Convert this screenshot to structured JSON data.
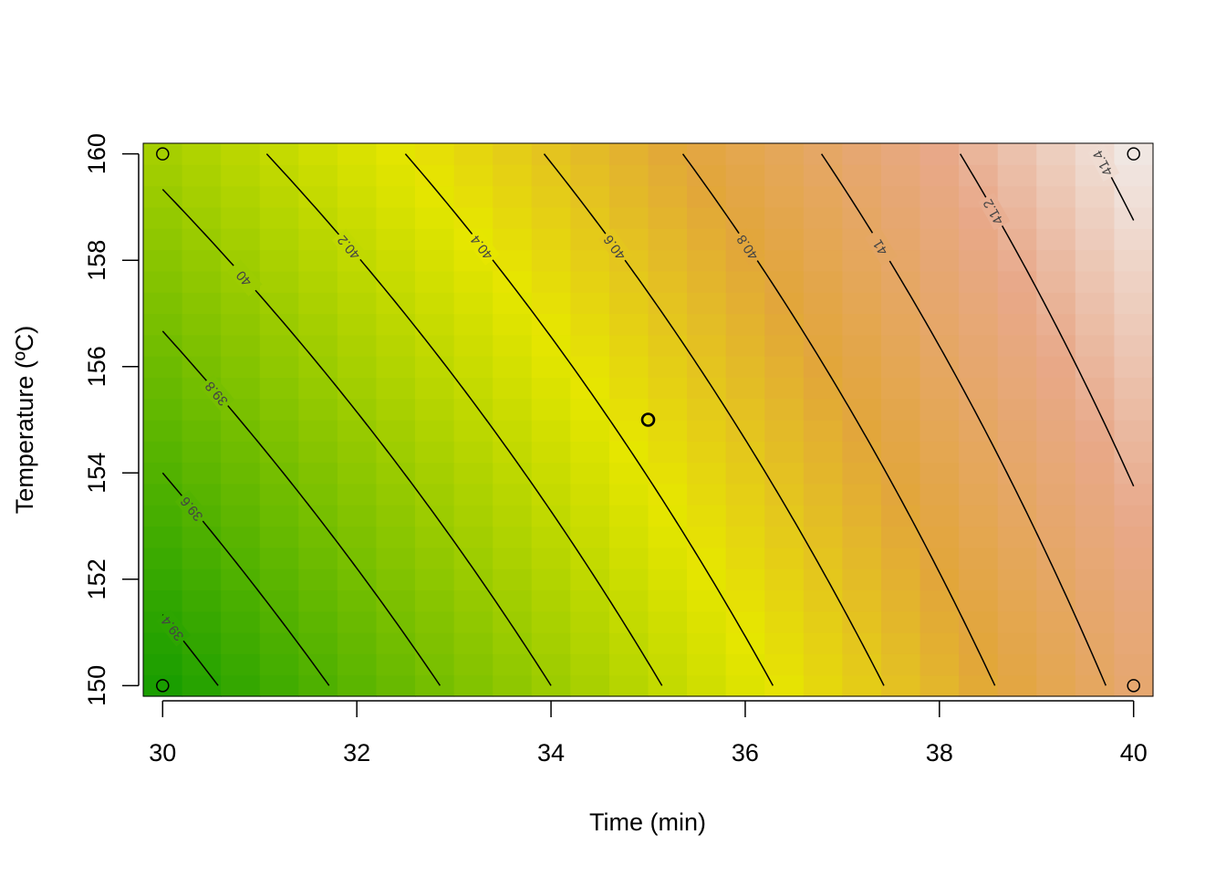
{
  "chart_data": {
    "type": "heatmap",
    "subtype": "filled contour / response surface with contour lines",
    "title": "",
    "xlabel": "Time (min)",
    "ylabel": "Temperature (ºC)",
    "xlim": [
      29.8,
      40.2
    ],
    "ylim": [
      149.8,
      160.2
    ],
    "x_ticks": [
      "30",
      "32",
      "34",
      "36",
      "38",
      "40"
    ],
    "y_ticks": [
      "150",
      "152",
      "154",
      "156",
      "158",
      "160"
    ],
    "grid": false,
    "legend": "none",
    "colors": {
      "low": "#1a9e00",
      "mid": "#e6e600",
      "high": "#f2f2f2"
    },
    "surface": {
      "formula_note": "",
      "z_at_corners": {
        "x30_y150": 39.3,
        "x40_y150": 41.05,
        "x30_y160": 40.05,
        "x40_y160": 41.45
      },
      "z_range": [
        39.3,
        41.5
      ]
    },
    "contour_levels": [
      "39.4",
      "39.6",
      "39.8",
      "40",
      "40.2",
      "40.4",
      "40.6",
      "40.8",
      "41",
      "41.2",
      "41.4"
    ],
    "design_points": [
      {
        "x": 30,
        "y": 150
      },
      {
        "x": 40,
        "y": 150
      },
      {
        "x": 30,
        "y": 160
      },
      {
        "x": 40,
        "y": 160
      },
      {
        "x": 35,
        "y": 155
      }
    ]
  }
}
